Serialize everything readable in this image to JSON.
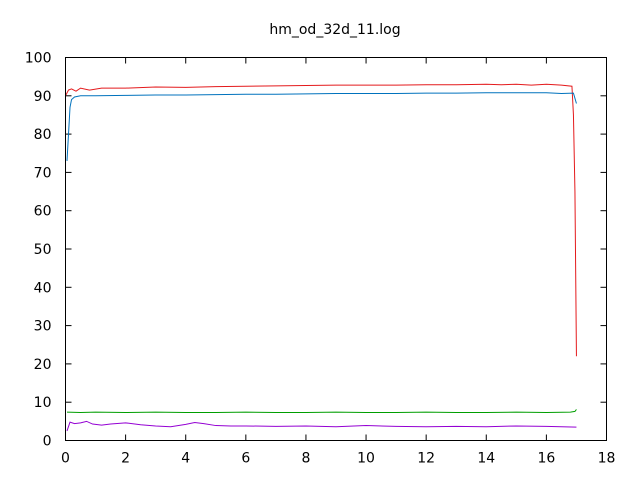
{
  "chart_data": {
    "type": "line",
    "title": "hm_od_32d_11.log",
    "xlabel": "",
    "ylabel": "",
    "xlim": [
      0,
      18
    ],
    "ylim": [
      0,
      100
    ],
    "x_ticks": [
      0,
      2,
      4,
      6,
      8,
      10,
      12,
      14,
      16,
      18
    ],
    "y_ticks": [
      0,
      10,
      20,
      30,
      40,
      50,
      60,
      70,
      80,
      90,
      100
    ],
    "grid": false,
    "legend": "none",
    "series": [
      {
        "color": "#e41a1c",
        "x": [
          0,
          0.1,
          0.2,
          0.35,
          0.5,
          0.8,
          1.2,
          2,
          3,
          4,
          5,
          6,
          7,
          8,
          9,
          10,
          11,
          12,
          13,
          14,
          14.5,
          15,
          15.5,
          16,
          16.5,
          16.85,
          16.9,
          16.95,
          17.0
        ],
        "y": [
          90,
          91.5,
          91.8,
          91.2,
          92,
          91.5,
          92,
          92,
          92.3,
          92.2,
          92.4,
          92.5,
          92.6,
          92.7,
          92.8,
          92.8,
          92.8,
          92.9,
          92.9,
          93,
          92.9,
          93,
          92.8,
          93,
          92.8,
          92.5,
          85,
          65,
          22
        ]
      },
      {
        "color": "#0072bd",
        "x": [
          0.05,
          0.1,
          0.15,
          0.2,
          0.3,
          0.5,
          1,
          2,
          3,
          4,
          5,
          6,
          7,
          8,
          9,
          10,
          11,
          12,
          13,
          14,
          15,
          16,
          16.5,
          16.9,
          17.0
        ],
        "y": [
          73,
          80,
          87,
          89,
          89.7,
          90,
          90,
          90.1,
          90.2,
          90.2,
          90.3,
          90.4,
          90.4,
          90.5,
          90.6,
          90.6,
          90.6,
          90.7,
          90.7,
          90.8,
          90.8,
          90.8,
          90.6,
          90.7,
          88
        ]
      },
      {
        "color": "#009e00",
        "x": [
          0.05,
          0.5,
          1,
          2,
          3,
          4,
          5,
          6,
          7,
          8,
          9,
          10,
          11,
          12,
          13,
          14,
          15,
          16,
          16.8,
          16.95,
          17.0
        ],
        "y": [
          7.4,
          7.3,
          7.4,
          7.3,
          7.4,
          7.3,
          7.3,
          7.4,
          7.3,
          7.3,
          7.4,
          7.3,
          7.3,
          7.4,
          7.3,
          7.3,
          7.4,
          7.3,
          7.4,
          7.6,
          8.1
        ]
      },
      {
        "color": "#9400d3",
        "x": [
          0.05,
          0.15,
          0.3,
          0.5,
          0.7,
          0.9,
          1.2,
          1.5,
          2,
          2.5,
          3,
          3.5,
          4,
          4.3,
          4.6,
          5,
          5.5,
          6,
          7,
          8,
          9,
          10,
          11,
          12,
          13,
          14,
          15,
          16,
          16.5,
          17.0
        ],
        "y": [
          2.5,
          4.8,
          4.4,
          4.6,
          5.0,
          4.3,
          4.0,
          4.3,
          4.6,
          4.1,
          3.8,
          3.6,
          4.2,
          4.7,
          4.4,
          3.9,
          3.8,
          3.8,
          3.7,
          3.8,
          3.6,
          3.9,
          3.7,
          3.6,
          3.7,
          3.6,
          3.8,
          3.7,
          3.6,
          3.5
        ]
      }
    ]
  }
}
